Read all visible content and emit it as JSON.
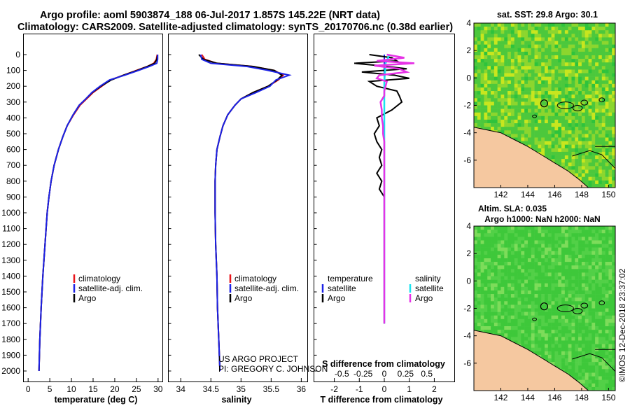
{
  "header": {
    "title_line1": "Argo profile: aoml 5903874_188 06-Jul-2017 1.857S 145.22E (NRT data)",
    "title_line2": "Climatology: CARS2009. Satellite-adjusted climatology: synTS_20170706.nc (0.38d earlier)"
  },
  "colors": {
    "climatology": "#e8141a",
    "satellite": "#1c22e6",
    "argo": "#000000",
    "sat_salinity": "#19e3f0",
    "sal_diff_argo": "#e632e6",
    "land": "#f5c8a0",
    "sea_a": "#2ec33c",
    "sea_b": "#c8e61e"
  },
  "depth_axis": {
    "ticks": [
      "0",
      "100",
      "200",
      "300",
      "400",
      "500",
      "600",
      "700",
      "800",
      "900",
      "1000",
      "1100",
      "1200",
      "1300",
      "1400",
      "1500",
      "1600",
      "1700",
      "1800",
      "1900",
      "2000"
    ]
  },
  "chart_data": [
    {
      "type": "line",
      "name": "temperature-profile",
      "xlabel": "temperature (deg C)",
      "xlim": [
        -1,
        31
      ],
      "xticks": [
        "0",
        "5",
        "10",
        "15",
        "20",
        "25",
        "30"
      ],
      "xtick_values": [
        0,
        5,
        10,
        15,
        20,
        25,
        30
      ],
      "depths": [
        0,
        30,
        55,
        75,
        100,
        130,
        160,
        200,
        240,
        280,
        320,
        380,
        450,
        520,
        600,
        700,
        800,
        900,
        1000,
        1200,
        1400,
        1600,
        1800,
        2000
      ],
      "series": [
        {
          "name": "climatology",
          "values": [
            29.8,
            29.6,
            29.0,
            27.5,
            25.0,
            22.0,
            19.0,
            17.0,
            15.0,
            13.5,
            12.0,
            10.5,
            9.0,
            8.0,
            7.0,
            6.0,
            5.3,
            4.8,
            4.4,
            3.9,
            3.4,
            3.0,
            2.7,
            2.5
          ]
        },
        {
          "name": "satellite-adj. clim.",
          "values": [
            29.9,
            29.7,
            29.2,
            27.5,
            25.2,
            22.0,
            19.2,
            16.8,
            14.8,
            13.3,
            11.8,
            10.4,
            9.0,
            8.0,
            7.0,
            6.0,
            5.3,
            4.8,
            4.4,
            3.9,
            3.4,
            3.0,
            2.7,
            2.5
          ]
        },
        {
          "name": "Argo",
          "values": [
            29.9,
            29.9,
            29.7,
            28.0,
            25.5,
            22.3,
            18.8,
            16.6,
            14.7,
            13.3,
            11.8,
            10.4,
            9.0,
            8.0,
            7.0,
            6.0,
            5.3,
            4.8,
            4.4,
            3.9,
            3.4,
            3.0,
            2.7,
            2.5
          ]
        }
      ]
    },
    {
      "type": "line",
      "name": "salinity-profile",
      "xlabel": "salinity",
      "xlim": [
        33.8,
        36.1
      ],
      "xticks": [
        "34",
        "34.5",
        "35",
        "35.5",
        "36"
      ],
      "xtick_values": [
        34,
        34.5,
        35,
        35.5,
        36
      ],
      "depths": [
        0,
        30,
        55,
        75,
        100,
        130,
        160,
        200,
        240,
        280,
        320,
        380,
        450,
        520,
        600,
        700,
        800,
        900,
        1000,
        1200,
        1400,
        1600,
        1800,
        2000
      ],
      "series": [
        {
          "name": "climatology",
          "values": [
            34.35,
            34.4,
            34.6,
            35.2,
            35.55,
            35.7,
            35.62,
            35.45,
            35.2,
            35.0,
            34.9,
            34.78,
            34.7,
            34.65,
            34.6,
            34.58,
            34.57,
            34.57,
            34.57,
            34.58,
            34.6,
            34.61,
            34.63,
            34.65
          ]
        },
        {
          "name": "satellite-adj. clim.",
          "values": [
            34.3,
            34.38,
            34.6,
            35.2,
            35.55,
            35.68,
            35.6,
            35.45,
            35.2,
            35.0,
            34.9,
            34.78,
            34.7,
            34.65,
            34.6,
            34.58,
            34.57,
            34.57,
            34.57,
            34.58,
            34.6,
            34.61,
            34.63,
            34.65
          ]
        },
        {
          "name": "Argo",
          "values": [
            34.33,
            34.35,
            34.5,
            35.1,
            35.45,
            35.8,
            35.58,
            35.48,
            35.25,
            35.0,
            34.9,
            34.78,
            34.7,
            34.65,
            34.6,
            34.58,
            34.57,
            34.57,
            34.57,
            34.58,
            34.6,
            34.61,
            34.63,
            34.65
          ]
        }
      ]
    },
    {
      "type": "line",
      "name": "difference-profile",
      "xlabel": "T difference from climatology",
      "xlim": [
        -2.8,
        2.8
      ],
      "xticks": [
        "-2",
        "-1",
        "0",
        "1",
        "2"
      ],
      "xtick_values": [
        -2,
        -1,
        0,
        1,
        2
      ],
      "top_label": "S difference from climatology",
      "top_ticks": [
        "-0.5",
        "-0.25",
        "0",
        "0.25",
        "0.5"
      ],
      "top_tick_values": [
        -1.7,
        -0.85,
        0,
        0.85,
        1.7
      ],
      "depths": [
        0,
        20,
        40,
        55,
        70,
        90,
        110,
        130,
        150,
        170,
        200,
        230,
        260,
        300,
        350,
        400,
        450,
        500,
        550,
        600,
        650,
        700,
        750,
        800,
        850,
        900,
        1000,
        1200,
        1400,
        1600,
        1700
      ],
      "series": [
        {
          "name": "T satellite",
          "values": [
            0,
            0,
            0,
            0,
            0,
            0,
            0,
            0,
            0,
            0,
            0,
            0,
            0,
            0,
            0,
            0,
            0,
            0,
            0,
            0,
            0,
            0,
            0,
            0,
            0,
            0,
            0,
            0,
            0,
            0,
            0
          ]
        },
        {
          "name": "T Argo",
          "values": [
            -0.6,
            0.3,
            0.5,
            -1.2,
            -0.2,
            0.9,
            -0.9,
            0.4,
            1.0,
            -0.6,
            -0.3,
            0.5,
            0.6,
            0.7,
            0.3,
            -0.3,
            -0.2,
            -0.4,
            -0.3,
            -0.1,
            -0.2,
            -0.1,
            -0.3,
            -0.1,
            -0.2,
            0,
            0,
            0,
            0,
            0,
            0
          ]
        },
        {
          "name": "S satellite",
          "values": [
            0.2,
            0.15,
            0.1,
            0.05,
            0.05,
            0.04,
            0.03,
            0.02,
            0.01,
            0,
            0,
            0,
            0,
            0,
            0,
            0,
            0,
            0,
            0,
            0,
            0,
            0,
            0,
            0,
            0,
            0,
            0,
            0,
            0,
            0,
            0
          ]
        },
        {
          "name": "S Argo",
          "values": [
            0.1,
            0.8,
            -0.3,
            1.2,
            -0.4,
            0.6,
            0.9,
            -0.2,
            -0.3,
            0.1,
            0.05,
            0,
            0,
            -0.15,
            -0.1,
            -0.1,
            -0.05,
            -0.05,
            0,
            0,
            0,
            0,
            0,
            0,
            0,
            0,
            0,
            0,
            0,
            0,
            0
          ]
        }
      ]
    },
    {
      "type": "heatmap",
      "name": "sst-map",
      "title": "sat. SST: 29.8 Argo: 30.1",
      "xlim": [
        140,
        150.5
      ],
      "ylim": [
        -8,
        4
      ],
      "xticks": [
        "142",
        "144",
        "146",
        "148",
        "150"
      ],
      "xtick_values": [
        142,
        144,
        146,
        148,
        150
      ],
      "yticks": [
        "4",
        "2",
        "0",
        "-2",
        "-4",
        "-6"
      ],
      "ytick_values": [
        4,
        2,
        0,
        -2,
        -4,
        -6
      ],
      "float_position": [
        145.22,
        -1.857
      ]
    },
    {
      "type": "heatmap",
      "name": "sla-map",
      "title": "Altim. SLA: 0.035",
      "subtitle": "Argo h1000: NaN h2000: NaN",
      "xlim": [
        140,
        150.5
      ],
      "ylim": [
        -8,
        4
      ],
      "xticks": [
        "142",
        "144",
        "146",
        "148",
        "150"
      ],
      "xtick_values": [
        142,
        144,
        146,
        148,
        150
      ],
      "yticks": [
        "4",
        "2",
        "0",
        "-2",
        "-4",
        "-6"
      ],
      "ytick_values": [
        4,
        2,
        0,
        -2,
        -4,
        -6
      ],
      "float_position": [
        145.22,
        -1.857
      ]
    }
  ],
  "legends": {
    "temperature": [
      "climatology",
      "satellite-adj. clim.",
      "Argo"
    ],
    "salinity": [
      "climatology",
      "satellite-adj. clim.",
      "Argo"
    ],
    "diff_t_title": "temperature",
    "diff_t_items": [
      "satellite",
      "Argo"
    ],
    "diff_s_title": "salinity",
    "diff_s_items": [
      "satellite",
      "Argo"
    ]
  },
  "credits": {
    "project": "US ARGO PROJECT",
    "pi": "PI: GREGORY C. JOHNSON",
    "stamp": "©IMOS 12-Dec-2018 23:37:02"
  }
}
